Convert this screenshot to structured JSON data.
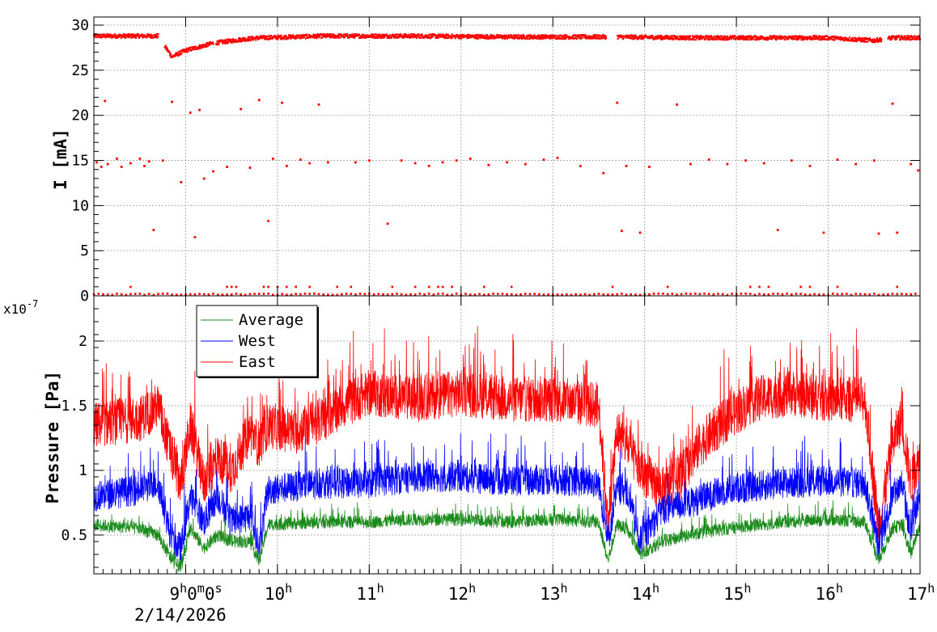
{
  "chart_data": [
    {
      "type": "scatter",
      "panel": "top",
      "ylabel": "I [mA]",
      "ylim": [
        0,
        30.9
      ],
      "y_ticks": [
        "0",
        "5",
        "10",
        "15",
        "20",
        "25",
        "30"
      ],
      "grid": true,
      "series": [
        {
          "color": "#ff0000",
          "main_band": [
            [
              8.0,
              28.8
            ],
            [
              8.7,
              28.8
            ],
            [
              8.85,
              26.5
            ],
            [
              9.0,
              27.2
            ],
            [
              9.3,
              28.0
            ],
            [
              9.6,
              28.4
            ],
            [
              9.8,
              28.6
            ],
            [
              10.5,
              28.8
            ],
            [
              11.5,
              28.8
            ],
            [
              12.5,
              28.7
            ],
            [
              13.5,
              28.7
            ],
            [
              13.7,
              28.7
            ],
            [
              14.5,
              28.6
            ],
            [
              15.5,
              28.6
            ],
            [
              16.0,
              28.6
            ],
            [
              16.5,
              28.3
            ],
            [
              16.7,
              28.6
            ],
            [
              17.0,
              28.6
            ]
          ],
          "outliers": [
            [
              8.03,
              14.8
            ],
            [
              8.08,
              14.3
            ],
            [
              8.12,
              21.6
            ],
            [
              8.15,
              14.6
            ],
            [
              8.25,
              15.2
            ],
            [
              8.3,
              14.3
            ],
            [
              8.4,
              14.7
            ],
            [
              8.5,
              15.2
            ],
            [
              8.55,
              14.4
            ],
            [
              8.6,
              14.9
            ],
            [
              8.65,
              7.3
            ],
            [
              8.75,
              15.0
            ],
            [
              8.85,
              21.5
            ],
            [
              8.95,
              12.6
            ],
            [
              9.05,
              20.3
            ],
            [
              9.1,
              6.5
            ],
            [
              9.15,
              20.6
            ],
            [
              9.2,
              13.0
            ],
            [
              9.3,
              13.8
            ],
            [
              9.45,
              14.3
            ],
            [
              9.6,
              20.7
            ],
            [
              9.7,
              14.2
            ],
            [
              9.8,
              21.7
            ],
            [
              9.9,
              8.3
            ],
            [
              9.95,
              15.2
            ],
            [
              10.05,
              21.4
            ],
            [
              10.1,
              14.4
            ],
            [
              10.25,
              15.1
            ],
            [
              10.35,
              14.7
            ],
            [
              10.45,
              21.2
            ],
            [
              10.55,
              14.8
            ],
            [
              10.85,
              14.8
            ],
            [
              11.0,
              15.0
            ],
            [
              11.2,
              8.0
            ],
            [
              11.35,
              15.0
            ],
            [
              11.5,
              14.7
            ],
            [
              11.65,
              14.4
            ],
            [
              11.8,
              14.8
            ],
            [
              11.95,
              15.0
            ],
            [
              12.1,
              15.2
            ],
            [
              12.3,
              14.5
            ],
            [
              12.5,
              14.8
            ],
            [
              12.7,
              14.6
            ],
            [
              12.9,
              15.1
            ],
            [
              13.05,
              15.3
            ],
            [
              13.3,
              14.4
            ],
            [
              13.55,
              13.6
            ],
            [
              13.7,
              21.4
            ],
            [
              13.75,
              7.2
            ],
            [
              13.8,
              14.4
            ],
            [
              13.95,
              7.0
            ],
            [
              14.05,
              14.3
            ],
            [
              14.35,
              21.2
            ],
            [
              14.5,
              14.6
            ],
            [
              14.7,
              15.1
            ],
            [
              14.9,
              14.6
            ],
            [
              15.1,
              15.0
            ],
            [
              15.3,
              14.7
            ],
            [
              15.45,
              7.3
            ],
            [
              15.6,
              15.0
            ],
            [
              15.8,
              14.4
            ],
            [
              15.95,
              7.0
            ],
            [
              16.1,
              15.1
            ],
            [
              16.3,
              14.6
            ],
            [
              16.5,
              15.0
            ],
            [
              16.55,
              6.9
            ],
            [
              16.7,
              21.3
            ],
            [
              16.75,
              7.0
            ],
            [
              16.9,
              14.6
            ],
            [
              16.98,
              13.9
            ]
          ],
          "baseline": 0.1
        }
      ]
    },
    {
      "type": "line",
      "panel": "bottom",
      "ylabel": "Pressure [Pa]",
      "exponent_label": "x10",
      "exponent_power": "-7",
      "ylim": [
        0.2,
        2.35
      ],
      "y_ticks": [
        "0.5",
        "1",
        "1.5",
        "2"
      ],
      "x_tick_labels": [
        "10",
        "11",
        "12",
        "13",
        "14",
        "15",
        "16",
        "17"
      ],
      "x_first_label": "9",
      "x_first_label_tail": "0",
      "x_first_label_seconds": "0",
      "hour_suffix": "h",
      "minute_suffix": "m",
      "second_suffix": "s",
      "date_label": "2/14/2026",
      "xlim": [
        8.0,
        17.0
      ],
      "grid": true,
      "legend": {
        "placement": "top-left",
        "entries": [
          {
            "label": "Average",
            "color": "#1a8a1a"
          },
          {
            "label": "West",
            "color": "#0000ff"
          },
          {
            "label": "East",
            "color": "#ff0000"
          }
        ]
      },
      "series": [
        {
          "name": "East",
          "color": "#ff0000",
          "x": [
            8.0,
            8.5,
            8.7,
            8.85,
            8.95,
            9.05,
            9.2,
            9.35,
            9.5,
            9.7,
            9.8,
            9.9,
            10.2,
            10.5,
            10.7,
            11.0,
            11.5,
            12.0,
            12.5,
            13.0,
            13.5,
            13.6,
            13.7,
            13.8,
            13.95,
            14.2,
            14.4,
            14.6,
            14.9,
            15.2,
            15.6,
            16.0,
            16.4,
            16.55,
            16.7,
            16.8,
            16.9,
            17.0
          ],
          "y": [
            1.35,
            1.4,
            1.5,
            1.1,
            0.9,
            1.35,
            0.9,
            1.1,
            1.0,
            1.3,
            1.2,
            1.35,
            1.3,
            1.4,
            1.5,
            1.6,
            1.55,
            1.6,
            1.55,
            1.55,
            1.5,
            0.6,
            1.3,
            1.2,
            1.0,
            0.85,
            0.95,
            1.2,
            1.4,
            1.55,
            1.6,
            1.55,
            1.55,
            0.55,
            1.2,
            1.4,
            0.9,
            1.1
          ],
          "noise": 0.18
        },
        {
          "name": "West",
          "color": "#0000ff",
          "x": [
            8.0,
            8.5,
            8.7,
            8.85,
            8.95,
            9.05,
            9.2,
            9.35,
            9.5,
            9.7,
            9.8,
            9.9,
            10.5,
            11.0,
            11.5,
            12.0,
            12.5,
            13.0,
            13.5,
            13.6,
            13.7,
            13.8,
            13.95,
            14.2,
            14.5,
            14.9,
            15.5,
            16.0,
            16.4,
            16.55,
            16.7,
            16.8,
            16.9,
            17.0
          ],
          "y": [
            0.8,
            0.85,
            0.9,
            0.45,
            0.4,
            0.8,
            0.6,
            0.8,
            0.6,
            0.65,
            0.4,
            0.85,
            0.9,
            0.9,
            0.95,
            0.95,
            0.92,
            0.93,
            0.9,
            0.45,
            0.85,
            0.85,
            0.45,
            0.7,
            0.75,
            0.85,
            0.9,
            0.92,
            0.9,
            0.4,
            0.8,
            0.9,
            0.5,
            0.85
          ],
          "noise": 0.12
        },
        {
          "name": "Average",
          "color": "#1a8a1a",
          "x": [
            8.0,
            8.5,
            8.7,
            8.85,
            8.95,
            9.05,
            9.2,
            9.35,
            9.5,
            9.7,
            9.8,
            9.9,
            10.5,
            11.0,
            11.5,
            12.0,
            12.5,
            13.0,
            13.5,
            13.6,
            13.7,
            13.8,
            13.95,
            14.2,
            14.5,
            14.9,
            15.5,
            16.0,
            16.4,
            16.55,
            16.7,
            16.8,
            16.9,
            17.0
          ],
          "y": [
            0.58,
            0.55,
            0.5,
            0.3,
            0.25,
            0.55,
            0.4,
            0.5,
            0.45,
            0.45,
            0.3,
            0.58,
            0.6,
            0.6,
            0.62,
            0.62,
            0.6,
            0.62,
            0.6,
            0.3,
            0.58,
            0.55,
            0.35,
            0.45,
            0.5,
            0.55,
            0.6,
            0.62,
            0.6,
            0.3,
            0.55,
            0.58,
            0.35,
            0.58
          ],
          "noise": 0.05
        }
      ]
    }
  ]
}
